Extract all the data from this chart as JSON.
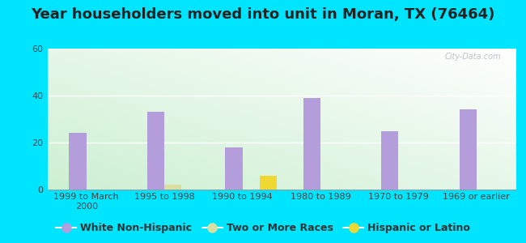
{
  "title": "Year householders moved into unit in Moran, TX (76464)",
  "categories": [
    "1999 to March\n2000",
    "1995 to 1998",
    "1990 to 1994",
    "1980 to 1989",
    "1970 to 1979",
    "1969 or earlier"
  ],
  "series": {
    "White Non-Hispanic": [
      24,
      33,
      18,
      39,
      25,
      34
    ],
    "Two or More Races": [
      0,
      2,
      0,
      0,
      0,
      0
    ],
    "Hispanic or Latino": [
      0,
      0,
      6,
      0,
      0,
      0
    ]
  },
  "colors": {
    "White Non-Hispanic": "#b39ddb",
    "Two or More Races": "#d8dfa0",
    "Hispanic or Latino": "#f0d832"
  },
  "ylim": [
    0,
    60
  ],
  "yticks": [
    0,
    20,
    40,
    60
  ],
  "outer_bg": "#00e5ff",
  "bar_width": 0.22,
  "title_fontsize": 13,
  "legend_fontsize": 9,
  "tick_fontsize": 8
}
